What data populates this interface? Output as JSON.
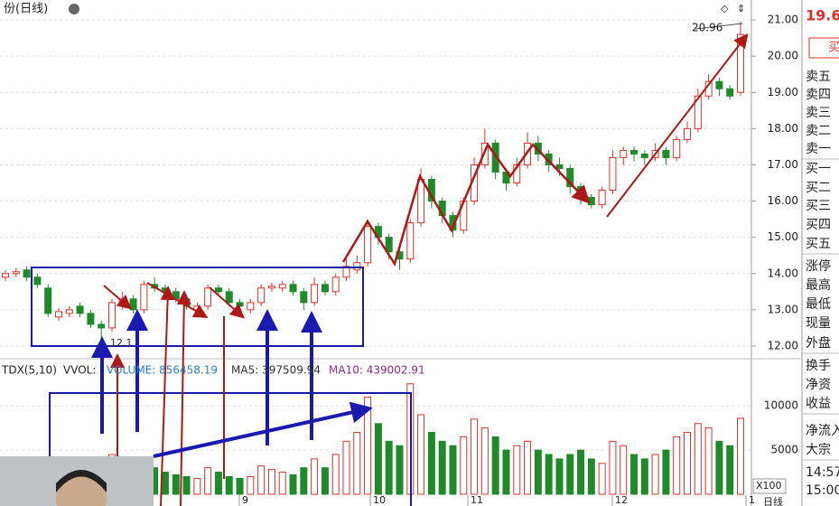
{
  "header": {
    "title": "份(日线)"
  },
  "chart_data": {
    "type": "candlestick",
    "open": [
      13.9,
      14.0,
      14.1,
      13.9,
      13.6,
      12.8,
      12.9,
      13.1,
      12.9,
      12.6,
      12.5,
      13.1,
      13.3,
      13.0,
      13.7,
      13.6,
      13.5,
      13.3,
      13.0,
      13.1,
      13.6,
      13.5,
      13.2,
      13.0,
      13.2,
      13.6,
      13.6,
      13.7,
      13.5,
      13.2,
      13.7,
      13.5,
      13.9,
      14.1,
      14.3,
      15.3,
      15.0,
      14.6,
      14.4,
      15.4,
      16.6,
      16.0,
      15.6,
      15.2,
      16.0,
      17.0,
      17.6,
      16.8,
      16.5,
      17.0,
      17.6,
      17.3,
      17.0,
      16.9,
      16.4,
      16.1,
      15.9,
      16.3,
      17.2,
      17.4,
      17.3,
      17.2,
      17.4,
      17.2,
      17.7,
      18.0,
      18.9,
      19.3,
      19.1,
      19.0
    ],
    "close": [
      14.0,
      14.05,
      13.9,
      13.7,
      12.9,
      12.95,
      13.0,
      12.9,
      12.6,
      12.5,
      13.2,
      13.3,
      13.0,
      13.7,
      13.6,
      13.5,
      13.3,
      13.1,
      13.1,
      13.6,
      13.5,
      13.2,
      13.1,
      13.2,
      13.6,
      13.65,
      13.7,
      13.5,
      13.2,
      13.7,
      13.5,
      13.9,
      14.2,
      14.3,
      15.3,
      15.0,
      14.6,
      14.4,
      15.4,
      16.6,
      16.0,
      15.6,
      15.2,
      16.0,
      17.0,
      17.6,
      16.8,
      16.5,
      17.0,
      17.6,
      17.3,
      17.0,
      16.9,
      16.4,
      16.1,
      15.9,
      16.3,
      17.2,
      17.4,
      17.3,
      17.2,
      17.4,
      17.2,
      17.7,
      18.0,
      18.9,
      19.3,
      19.1,
      18.9,
      20.6
    ],
    "high": [
      14.1,
      14.15,
      14.2,
      14.0,
      13.7,
      13.05,
      13.1,
      13.2,
      13.0,
      12.7,
      13.3,
      13.5,
      13.4,
      13.8,
      13.9,
      13.7,
      13.6,
      13.4,
      13.2,
      13.7,
      13.7,
      13.6,
      13.3,
      13.3,
      13.7,
      13.75,
      13.8,
      13.8,
      13.6,
      13.9,
      13.8,
      14.0,
      14.4,
      14.5,
      15.5,
      15.4,
      15.1,
      14.7,
      15.5,
      16.9,
      16.7,
      16.1,
      15.7,
      16.1,
      17.2,
      18.0,
      17.7,
      16.9,
      17.2,
      17.9,
      17.8,
      17.4,
      17.2,
      17.0,
      16.5,
      16.2,
      16.4,
      17.4,
      17.5,
      17.5,
      17.4,
      17.6,
      17.5,
      17.8,
      18.2,
      19.1,
      19.5,
      19.4,
      19.2,
      20.96
    ],
    "low": [
      13.8,
      13.9,
      13.8,
      13.6,
      12.8,
      12.7,
      12.8,
      12.8,
      12.5,
      12.1,
      12.4,
      13.0,
      12.9,
      12.9,
      13.5,
      13.4,
      13.2,
      13.0,
      12.9,
      13.0,
      13.4,
      13.1,
      13.0,
      12.9,
      13.1,
      13.5,
      13.5,
      13.4,
      13.0,
      13.1,
      13.4,
      13.4,
      13.8,
      14.0,
      14.2,
      14.8,
      14.4,
      14.1,
      14.3,
      15.3,
      15.8,
      15.4,
      15.0,
      15.1,
      15.9,
      16.9,
      16.6,
      16.3,
      16.4,
      16.9,
      17.1,
      16.8,
      16.7,
      16.2,
      15.9,
      15.8,
      15.8,
      16.2,
      17.0,
      17.1,
      17.0,
      17.1,
      17.0,
      17.1,
      17.6,
      17.9,
      18.8,
      18.9,
      18.8,
      18.9
    ],
    "volume": [
      2000,
      1800,
      1500,
      1700,
      3000,
      2500,
      2000,
      1800,
      2200,
      3500,
      4500,
      3000,
      2800,
      4000,
      3000,
      2500,
      2200,
      2000,
      1800,
      3000,
      2500,
      2000,
      1800,
      2000,
      3200,
      2800,
      2500,
      2200,
      3000,
      4000,
      3000,
      4500,
      6000,
      7000,
      11000,
      8000,
      6000,
      5500,
      12500,
      9000,
      7000,
      6000,
      5500,
      6500,
      8500,
      7500,
      6500,
      5000,
      5500,
      6000,
      5000,
      4500,
      4000,
      4500,
      5000,
      4000,
      3500,
      6000,
      5500,
      4500,
      4000,
      4500,
      5000,
      6500,
      7000,
      8000,
      7500,
      6000,
      5500,
      8600
    ],
    "up_color": "#e0302a",
    "down_color": "#1f8a2a",
    "ylim": [
      11.7,
      21.55
    ],
    "yticks": [
      {
        "value": 12,
        "label": "12.00"
      },
      {
        "value": 13,
        "label": "13.00"
      },
      {
        "value": 14,
        "label": "14.00"
      },
      {
        "value": 15,
        "label": "15.00"
      },
      {
        "value": 16,
        "label": "16.00"
      },
      {
        "value": 17,
        "label": "17.00"
      },
      {
        "value": 18,
        "label": "18.00"
      },
      {
        "value": 19,
        "label": "19.00"
      },
      {
        "value": 20,
        "label": "20.00"
      },
      {
        "value": 21,
        "label": "21.00"
      }
    ],
    "vol_ylim": [
      0,
      13500
    ],
    "vol_yticks": [
      5000,
      10000
    ],
    "vol_unit": "X100",
    "month_labels": [
      "9",
      "10",
      "11",
      "12",
      "1"
    ],
    "period_label": "日线",
    "annotations": {
      "high": "20.96",
      "low": "12.1"
    },
    "indicator": {
      "name": "TDX(5,10)",
      "vvol": "VVOL:",
      "volume": "VOLUME: 856458.19",
      "ma5": "MA5: 397509.94",
      "ma10": "MA10: 439002.91"
    }
  },
  "side_panel": {
    "price": "19.6",
    "button": "买",
    "rows": [
      "卖五",
      "卖四",
      "卖三",
      "卖二",
      "卖一",
      "买一",
      "买二",
      "买三",
      "买四",
      "买五",
      "涨停",
      "最高",
      "最低",
      "现量",
      "外盘",
      "换手",
      "净资",
      "收益",
      "净流入",
      "大宗",
      "14:57",
      "15:00"
    ]
  }
}
